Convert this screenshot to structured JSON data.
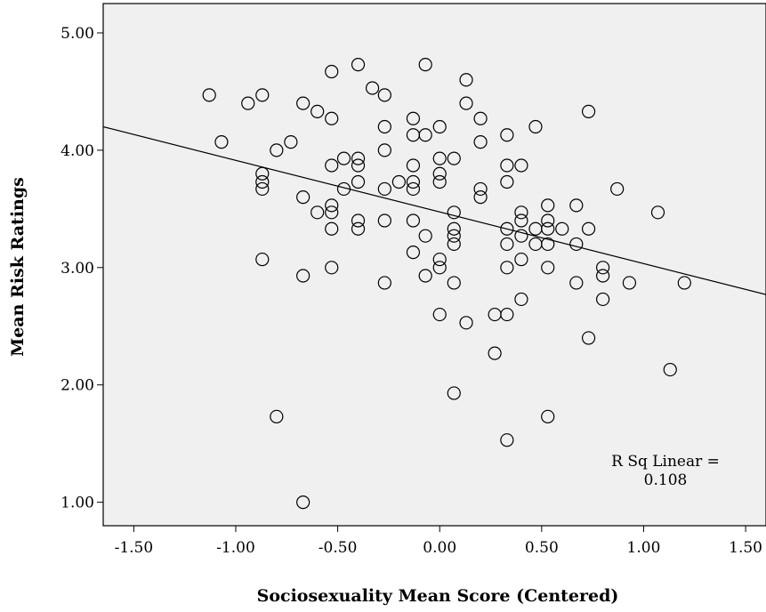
{
  "chart_data": {
    "type": "scatter",
    "xlabel": "Sociosexuality Mean Score (Centered)",
    "ylabel": "Mean Risk Ratings",
    "xlim": [
      -1.65,
      1.6
    ],
    "ylim": [
      0.8,
      5.25
    ],
    "x_ticks": [
      -1.5,
      -1.0,
      -0.5,
      0.0,
      0.5,
      1.0,
      1.5
    ],
    "x_tick_labels": [
      "-1.50",
      "-1.00",
      "-0.50",
      "0.00",
      "0.50",
      "1.00",
      "1.50"
    ],
    "y_ticks": [
      1.0,
      2.0,
      3.0,
      4.0,
      5.0
    ],
    "y_tick_labels": [
      "1.00",
      "2.00",
      "3.00",
      "4.00",
      "5.00"
    ],
    "grid": false,
    "background": "#f0f0f0",
    "fit_line": {
      "type": "linear",
      "x": [
        -1.65,
        1.6
      ],
      "y": [
        4.2,
        2.77
      ]
    },
    "annotation": {
      "line1": "R Sq Linear =",
      "line2": "0.108"
    },
    "points": [
      [
        -1.13,
        4.47
      ],
      [
        -1.07,
        4.07
      ],
      [
        -0.94,
        4.4
      ],
      [
        -0.87,
        4.47
      ],
      [
        -0.87,
        3.8
      ],
      [
        -0.87,
        3.73
      ],
      [
        -0.87,
        3.67
      ],
      [
        -0.87,
        3.07
      ],
      [
        -0.8,
        4.0
      ],
      [
        -0.8,
        1.73
      ],
      [
        -0.73,
        4.07
      ],
      [
        -0.67,
        4.4
      ],
      [
        -0.67,
        3.6
      ],
      [
        -0.67,
        2.93
      ],
      [
        -0.67,
        1.0
      ],
      [
        -0.6,
        4.33
      ],
      [
        -0.6,
        3.47
      ],
      [
        -0.53,
        4.67
      ],
      [
        -0.53,
        4.27
      ],
      [
        -0.53,
        3.87
      ],
      [
        -0.53,
        3.53
      ],
      [
        -0.53,
        3.47
      ],
      [
        -0.53,
        3.33
      ],
      [
        -0.53,
        3.0
      ],
      [
        -0.47,
        3.93
      ],
      [
        -0.47,
        3.67
      ],
      [
        -0.4,
        4.73
      ],
      [
        -0.4,
        3.93
      ],
      [
        -0.4,
        3.87
      ],
      [
        -0.4,
        3.73
      ],
      [
        -0.4,
        3.4
      ],
      [
        -0.4,
        3.33
      ],
      [
        -0.33,
        4.53
      ],
      [
        -0.27,
        4.47
      ],
      [
        -0.27,
        4.2
      ],
      [
        -0.27,
        4.0
      ],
      [
        -0.27,
        3.67
      ],
      [
        -0.27,
        3.4
      ],
      [
        -0.27,
        2.87
      ],
      [
        -0.2,
        3.73
      ],
      [
        -0.13,
        4.27
      ],
      [
        -0.13,
        4.13
      ],
      [
        -0.13,
        3.87
      ],
      [
        -0.13,
        3.73
      ],
      [
        -0.13,
        3.67
      ],
      [
        -0.13,
        3.4
      ],
      [
        -0.13,
        3.13
      ],
      [
        -0.07,
        4.73
      ],
      [
        -0.07,
        4.13
      ],
      [
        -0.07,
        3.27
      ],
      [
        -0.07,
        2.93
      ],
      [
        0.0,
        4.2
      ],
      [
        0.0,
        3.93
      ],
      [
        0.0,
        3.8
      ],
      [
        0.0,
        3.73
      ],
      [
        0.0,
        3.07
      ],
      [
        0.0,
        3.0
      ],
      [
        0.0,
        2.6
      ],
      [
        0.07,
        3.93
      ],
      [
        0.07,
        3.47
      ],
      [
        0.07,
        3.33
      ],
      [
        0.07,
        3.27
      ],
      [
        0.07,
        3.2
      ],
      [
        0.07,
        2.87
      ],
      [
        0.07,
        1.93
      ],
      [
        0.13,
        4.6
      ],
      [
        0.13,
        4.4
      ],
      [
        0.13,
        2.53
      ],
      [
        0.2,
        4.27
      ],
      [
        0.2,
        4.07
      ],
      [
        0.2,
        3.67
      ],
      [
        0.2,
        3.6
      ],
      [
        0.27,
        2.6
      ],
      [
        0.27,
        2.27
      ],
      [
        0.33,
        4.13
      ],
      [
        0.33,
        3.87
      ],
      [
        0.33,
        3.73
      ],
      [
        0.33,
        3.33
      ],
      [
        0.33,
        3.2
      ],
      [
        0.33,
        3.0
      ],
      [
        0.33,
        2.6
      ],
      [
        0.33,
        1.53
      ],
      [
        0.4,
        3.87
      ],
      [
        0.4,
        3.47
      ],
      [
        0.4,
        3.4
      ],
      [
        0.4,
        3.27
      ],
      [
        0.4,
        3.07
      ],
      [
        0.4,
        2.73
      ],
      [
        0.47,
        4.2
      ],
      [
        0.47,
        3.33
      ],
      [
        0.47,
        3.2
      ],
      [
        0.53,
        3.53
      ],
      [
        0.53,
        3.4
      ],
      [
        0.53,
        3.33
      ],
      [
        0.53,
        3.2
      ],
      [
        0.53,
        3.0
      ],
      [
        0.53,
        1.73
      ],
      [
        0.6,
        3.33
      ],
      [
        0.67,
        3.53
      ],
      [
        0.67,
        3.2
      ],
      [
        0.67,
        2.87
      ],
      [
        0.73,
        4.33
      ],
      [
        0.73,
        3.33
      ],
      [
        0.73,
        2.4
      ],
      [
        0.8,
        3.0
      ],
      [
        0.8,
        2.93
      ],
      [
        0.8,
        2.73
      ],
      [
        0.87,
        3.67
      ],
      [
        0.93,
        2.87
      ],
      [
        1.07,
        3.47
      ],
      [
        1.13,
        2.13
      ],
      [
        1.2,
        2.87
      ]
    ]
  }
}
